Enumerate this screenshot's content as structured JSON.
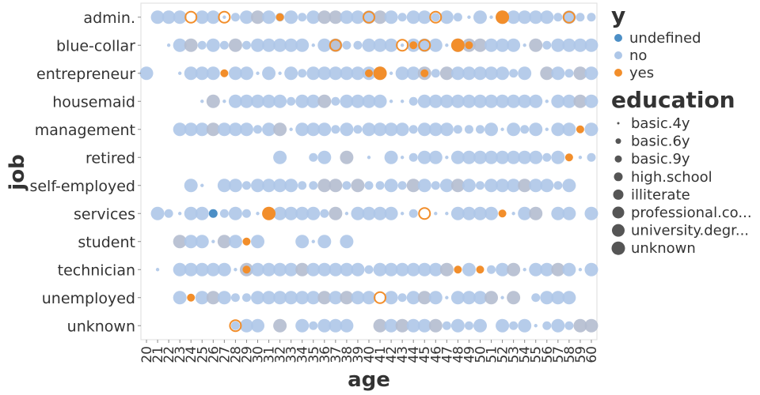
{
  "chart_data": {
    "type": "scatter",
    "title": "",
    "xlabel": "age",
    "ylabel": "job",
    "x_categories": [
      "20",
      "21",
      "22",
      "23",
      "24",
      "25",
      "26",
      "27",
      "28",
      "29",
      "30",
      "31",
      "32",
      "33",
      "34",
      "35",
      "36",
      "37",
      "38",
      "39",
      "40",
      "41",
      "42",
      "43",
      "44",
      "45",
      "46",
      "47",
      "48",
      "49",
      "50",
      "51",
      "52",
      "53",
      "54",
      "55",
      "56",
      "57",
      "58",
      "59",
      "60"
    ],
    "y_categories": [
      "admin.",
      "blue-collar",
      "entrepreneur",
      "housemaid",
      "management",
      "retired",
      "self-employed",
      "services",
      "student",
      "technician",
      "unemployed",
      "unknown"
    ],
    "grid": false,
    "legend_position": "right",
    "color_legend": {
      "title": "y",
      "entries": [
        {
          "label": "undefined",
          "color": "#4c8fc6"
        },
        {
          "label": "no",
          "color": "#aec7e8"
        },
        {
          "label": "yes",
          "color": "#f28e2b"
        }
      ]
    },
    "size_legend": {
      "title": "education",
      "entries": [
        "basic.4y",
        "basic.6y",
        "basic.9y",
        "high.school",
        "illiterate",
        "professional.co...",
        "university.degr...",
        "unknown"
      ]
    },
    "rows": {
      "admin.": {
        "ages": [
          21,
          22,
          23,
          25,
          26,
          27,
          28,
          29,
          30,
          31,
          32,
          33,
          34,
          35,
          36,
          37,
          38,
          39,
          40,
          41,
          42,
          43,
          44,
          45,
          46,
          47,
          48,
          49,
          50,
          51,
          52,
          53,
          54,
          55,
          56,
          57,
          58,
          59,
          60
        ],
        "yes": [
          24,
          27,
          32,
          40,
          46,
          52,
          58
        ]
      },
      "blue-collar": {
        "ages": [
          22,
          23,
          24,
          25,
          26,
          27,
          28,
          29,
          30,
          31,
          32,
          33,
          34,
          35,
          36,
          37,
          38,
          39,
          40,
          41,
          42,
          43,
          44,
          45,
          46,
          47,
          48,
          49,
          50,
          51,
          52,
          53,
          54,
          55,
          56,
          57,
          58,
          59,
          60
        ],
        "yes": [
          37,
          43,
          44,
          45,
          48,
          49
        ]
      },
      "entrepreneur": {
        "ages": [
          20,
          23,
          24,
          25,
          26,
          28,
          29,
          30,
          31,
          32,
          33,
          34,
          35,
          36,
          37,
          38,
          39,
          40,
          41,
          42,
          43,
          44,
          45,
          46,
          47,
          48,
          49,
          50,
          51,
          52,
          53,
          54,
          56,
          57,
          58,
          59,
          60
        ],
        "yes": [
          27,
          40,
          41,
          45
        ]
      },
      "housemaid": {
        "ages": [
          25,
          26,
          27,
          28,
          29,
          30,
          31,
          32,
          33,
          34,
          35,
          36,
          37,
          38,
          39,
          40,
          41,
          42,
          43,
          44,
          45,
          46,
          47,
          48,
          49,
          50,
          51,
          52,
          53,
          54,
          55,
          56,
          57,
          58,
          59,
          60
        ],
        "yes": []
      },
      "management": {
        "ages": [
          23,
          24,
          25,
          26,
          27,
          28,
          29,
          30,
          31,
          32,
          33,
          34,
          35,
          36,
          37,
          38,
          39,
          40,
          41,
          42,
          43,
          44,
          45,
          46,
          47,
          48,
          49,
          50,
          51,
          52,
          53,
          54,
          55,
          56,
          57,
          58,
          60
        ],
        "yes": [
          59
        ]
      },
      "retired": {
        "ages": [
          32,
          35,
          36,
          38,
          40,
          42,
          43,
          44,
          45,
          46,
          47,
          48,
          49,
          50,
          51,
          52,
          53,
          54,
          55,
          56,
          57,
          59,
          60
        ],
        "yes": [
          58
        ]
      },
      "self-employed": {
        "ages": [
          24,
          25,
          27,
          28,
          29,
          30,
          31,
          32,
          33,
          34,
          35,
          36,
          37,
          38,
          39,
          40,
          41,
          42,
          43,
          44,
          45,
          46,
          47,
          48,
          49,
          50,
          51,
          52,
          53,
          54,
          55,
          56,
          57,
          58
        ],
        "yes": []
      },
      "services": {
        "ages": [
          21,
          22,
          23,
          24,
          25,
          27,
          28,
          29,
          30,
          32,
          33,
          34,
          35,
          36,
          37,
          38,
          39,
          40,
          41,
          42,
          43,
          44,
          46,
          47,
          48,
          49,
          50,
          51,
          53,
          54,
          55,
          57,
          58,
          60
        ],
        "yes": [
          31,
          45,
          52
        ],
        "undefined": [
          26
        ]
      },
      "student": {
        "ages": [
          23,
          24,
          25,
          26,
          27,
          28,
          30,
          34,
          35,
          36,
          38
        ],
        "yes": [
          29
        ]
      },
      "technician": {
        "ages": [
          21,
          23,
          24,
          25,
          26,
          27,
          28,
          29,
          30,
          31,
          32,
          33,
          34,
          35,
          36,
          37,
          38,
          39,
          40,
          41,
          42,
          43,
          44,
          45,
          46,
          47,
          49,
          51,
          52,
          53,
          54,
          55,
          56,
          57,
          58,
          59,
          60
        ],
        "yes": [
          29,
          48,
          50
        ]
      },
      "unemployed": {
        "ages": [
          23,
          25,
          26,
          27,
          28,
          29,
          30,
          31,
          32,
          33,
          34,
          35,
          36,
          37,
          38,
          39,
          40,
          42,
          43,
          44,
          45,
          46,
          47,
          48,
          49,
          50,
          51,
          52,
          53,
          55,
          56,
          57,
          58
        ],
        "yes": [
          24,
          41
        ]
      },
      "unknown": {
        "ages": [
          28,
          29,
          30,
          32,
          34,
          35,
          36,
          37,
          38,
          41,
          42,
          43,
          44,
          45,
          46,
          47,
          48,
          49,
          50,
          52,
          53,
          54,
          55,
          56,
          57,
          58,
          59,
          60
        ],
        "yes": [
          28
        ]
      }
    }
  }
}
